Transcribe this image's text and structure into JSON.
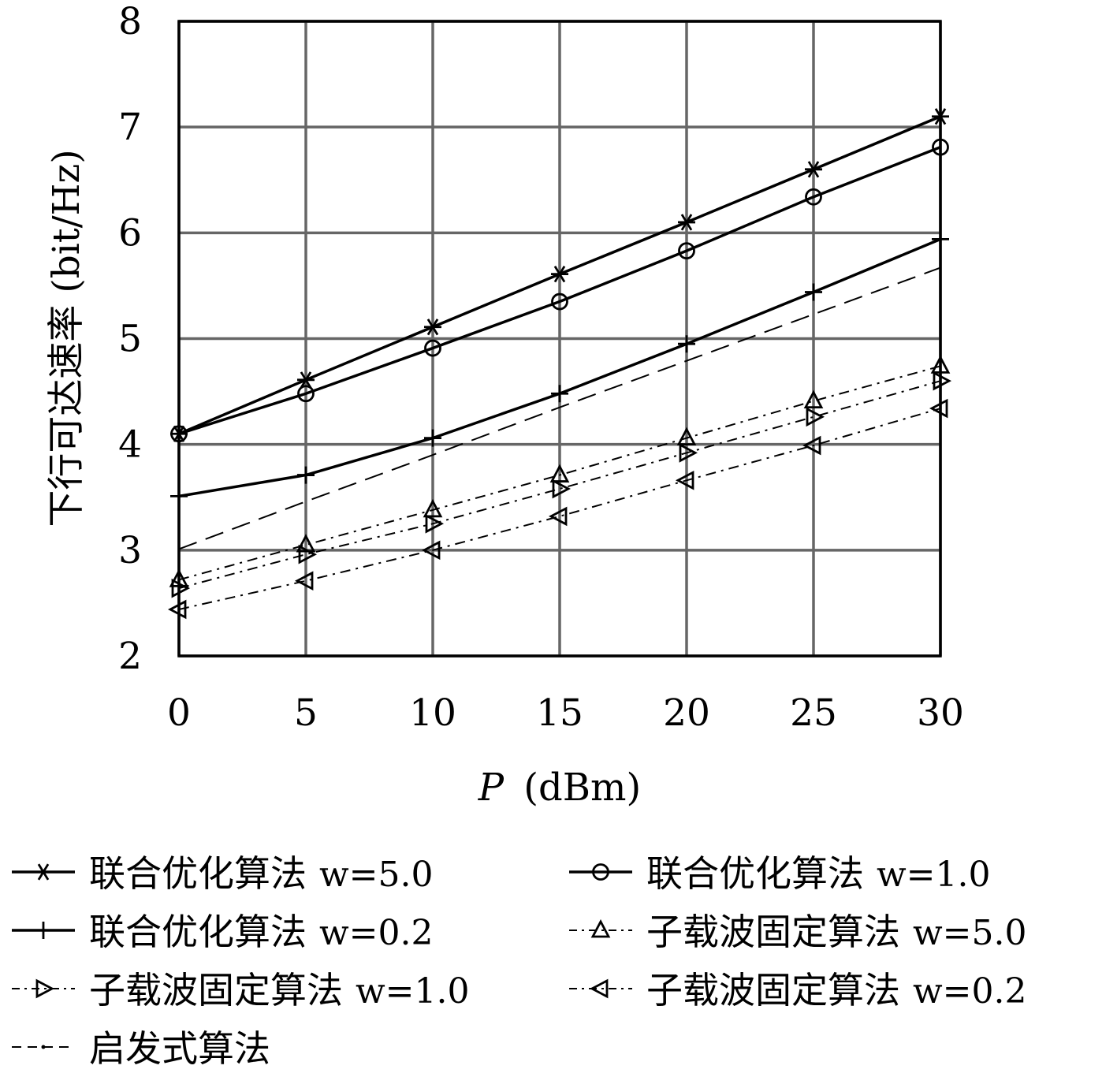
{
  "chart_data": {
    "type": "line",
    "xlabel": {
      "var": "P",
      "unit": "(dBm)"
    },
    "ylabel": "下行可达速率 (bit/Hz)",
    "xlim": [
      0,
      30
    ],
    "ylim": [
      2,
      8
    ],
    "xticks": [
      "0",
      "5",
      "10",
      "15",
      "20",
      "25",
      "30"
    ],
    "yticks": [
      "2",
      "3",
      "4",
      "5",
      "6",
      "7",
      "8"
    ],
    "grid": true,
    "legend_position": "bottom",
    "x": [
      0,
      5,
      10,
      15,
      20,
      25,
      30
    ],
    "series": [
      {
        "name": "联合优化算法",
        "w": "w=5.0",
        "style": "solid",
        "marker": "asterisk",
        "values": [
          4.1,
          4.61,
          5.11,
          5.61,
          6.1,
          6.6,
          7.1
        ]
      },
      {
        "name": "联合优化算法",
        "w": "w=1.0",
        "style": "solid",
        "marker": "circle",
        "values": [
          4.1,
          4.48,
          4.91,
          5.35,
          5.83,
          6.34,
          6.81
        ]
      },
      {
        "name": "联合优化算法",
        "w": "w=0.2",
        "style": "solid",
        "marker": "plus",
        "values": [
          3.51,
          3.71,
          4.06,
          4.48,
          4.95,
          5.44,
          5.94
        ]
      },
      {
        "name": "子载波固定算法",
        "w": "w=5.0",
        "style": "dashdot",
        "marker": "triangle-up",
        "values": [
          2.72,
          3.05,
          3.38,
          3.71,
          4.06,
          4.41,
          4.74
        ]
      },
      {
        "name": "子载波固定算法",
        "w": "w=1.0",
        "style": "dashdot",
        "marker": "triangle-right",
        "values": [
          2.64,
          2.96,
          3.25,
          3.58,
          3.92,
          4.26,
          4.6
        ]
      },
      {
        "name": "子载波固定算法",
        "w": "w=0.2",
        "style": "dashdot",
        "marker": "triangle-left",
        "values": [
          2.44,
          2.71,
          3.0,
          3.32,
          3.66,
          3.99,
          4.34
        ]
      },
      {
        "name": "启发式算法",
        "w": "",
        "style": "dashed",
        "marker": "none",
        "values": [
          3.01,
          3.46,
          3.9,
          4.35,
          4.79,
          5.23,
          5.67
        ]
      }
    ]
  }
}
